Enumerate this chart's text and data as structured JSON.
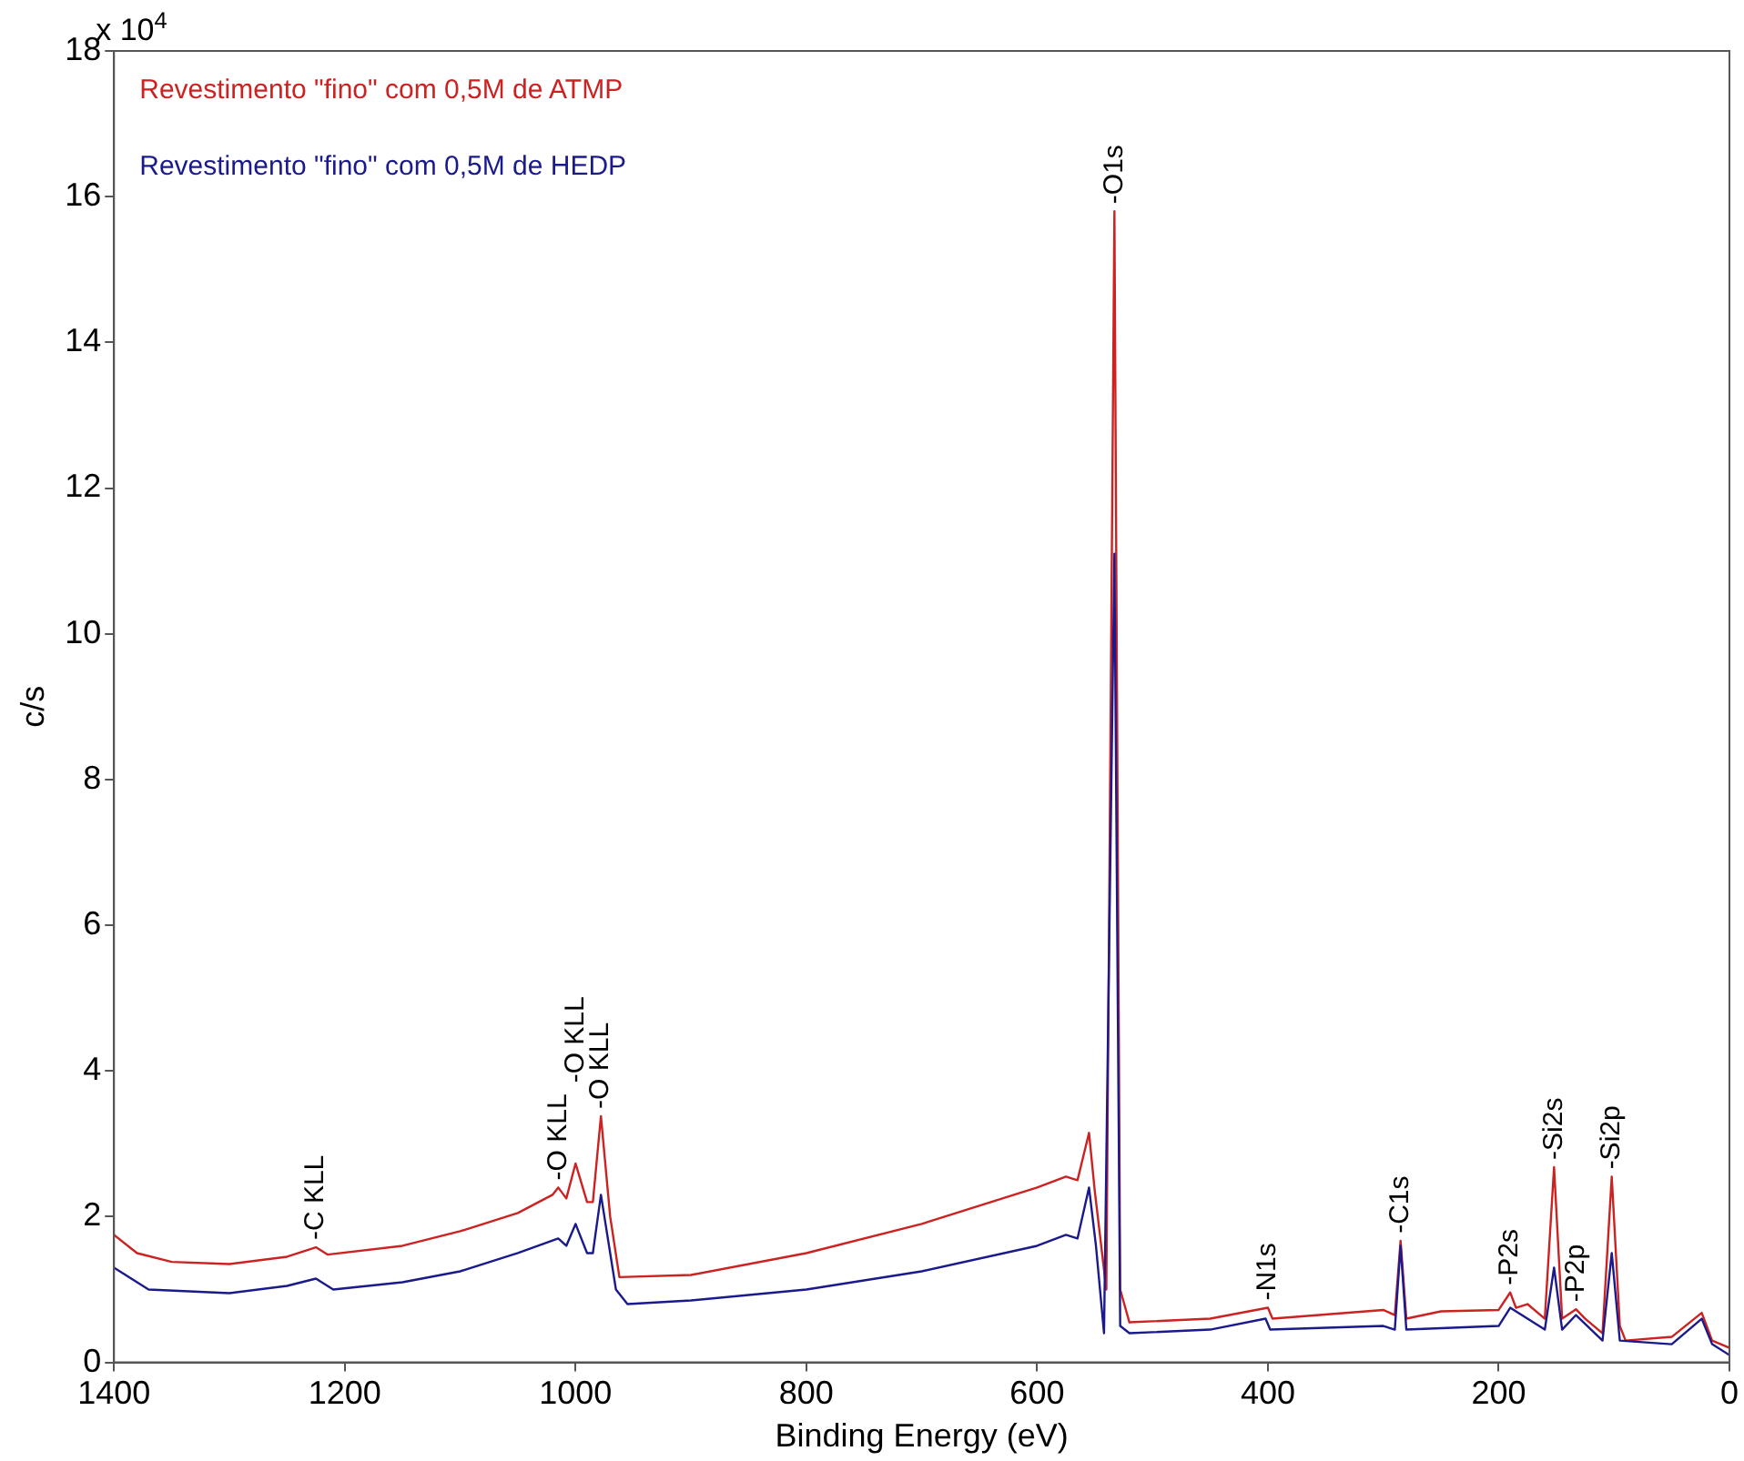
{
  "chart_data": {
    "type": "line",
    "xlabel": "Binding Energy (eV)",
    "ylabel": "c/s",
    "xlim": [
      1400,
      0
    ],
    "xticks": [
      1400,
      1200,
      1000,
      800,
      600,
      400,
      200,
      0
    ],
    "ylim": [
      0,
      18
    ],
    "yticks": [
      0,
      2,
      4,
      6,
      8,
      10,
      12,
      14,
      16,
      18
    ],
    "legend": "top left",
    "marker": "none",
    "line_style": "solid",
    "series": [
      {
        "name": "Revestimento \"fino\" com 0,5M de ATMP",
        "color": "#cc2222",
        "x": [
          1400,
          1380,
          1350,
          1300,
          1250,
          1225,
          1215,
          1150,
          1100,
          1050,
          1020,
          1015,
          1008,
          1000,
          990,
          985,
          978,
          970,
          962,
          900,
          800,
          700,
          600,
          575,
          565,
          555,
          550,
          540,
          533,
          528,
          520,
          450,
          400,
          396,
          300,
          290,
          285,
          280,
          250,
          200,
          190,
          185,
          175,
          160,
          152,
          145,
          133,
          125,
          110,
          102,
          95,
          90,
          50,
          24,
          15,
          0
        ],
        "values": [
          1.75,
          1.5,
          1.38,
          1.35,
          1.45,
          1.58,
          1.48,
          1.6,
          1.8,
          2.05,
          2.3,
          2.4,
          2.25,
          2.73,
          2.2,
          2.2,
          3.38,
          2.0,
          1.17,
          1.2,
          1.5,
          1.9,
          2.4,
          2.55,
          2.5,
          3.15,
          2.35,
          1.0,
          15.8,
          1.0,
          0.55,
          0.6,
          0.75,
          0.6,
          0.72,
          0.65,
          1.67,
          0.6,
          0.7,
          0.72,
          0.96,
          0.75,
          0.8,
          0.6,
          2.68,
          0.6,
          0.73,
          0.6,
          0.4,
          2.55,
          0.5,
          0.3,
          0.35,
          0.68,
          0.3,
          0.2
        ]
      },
      {
        "name": "Revestimento \"fino\" com 0,5M de HEDP",
        "color": "#1a1a8c",
        "x": [
          1400,
          1370,
          1300,
          1250,
          1225,
          1210,
          1150,
          1100,
          1050,
          1015,
          1008,
          1000,
          990,
          985,
          978,
          965,
          955,
          900,
          800,
          700,
          600,
          575,
          565,
          555,
          549,
          542,
          533,
          528,
          520,
          450,
          402,
          398,
          300,
          290,
          285,
          280,
          200,
          190,
          175,
          160,
          152,
          145,
          133,
          110,
          102,
          95,
          50,
          24,
          15,
          0
        ],
        "values": [
          1.3,
          1.0,
          0.95,
          1.05,
          1.15,
          1.0,
          1.1,
          1.25,
          1.5,
          1.7,
          1.6,
          1.9,
          1.5,
          1.5,
          2.3,
          1.0,
          0.8,
          0.85,
          1.0,
          1.25,
          1.6,
          1.75,
          1.7,
          2.4,
          1.6,
          0.4,
          11.1,
          0.5,
          0.4,
          0.45,
          0.6,
          0.45,
          0.5,
          0.45,
          1.6,
          0.45,
          0.5,
          0.75,
          0.6,
          0.45,
          1.3,
          0.45,
          0.65,
          0.3,
          1.5,
          0.3,
          0.25,
          0.6,
          0.25,
          0.1
        ]
      }
    ],
    "annotations": [
      "x 10$^{4}$",
      {
        "text": "-C KLL",
        "x": 1225,
        "y": 1.58
      },
      {
        "text": "-O KLL",
        "x": 1015,
        "y": 2.4
      },
      {
        "text": "-O KLL",
        "x": 1000,
        "y": 2.73
      },
      {
        "text": "-O KLL",
        "x": 978,
        "y": 3.38
      },
      {
        "text": "-O1s",
        "x": 533,
        "y": 15.8
      },
      {
        "text": "-N1s",
        "x": 400,
        "y": 0.75
      },
      {
        "text": "-C1s",
        "x": 285,
        "y": 1.67
      },
      {
        "text": "-P2s",
        "x": 190,
        "y": 0.96
      },
      {
        "text": "-Si2s",
        "x": 152,
        "y": 2.68
      },
      {
        "text": "-P2p",
        "x": 133,
        "y": 0.73
      },
      {
        "text": "-Si2p",
        "x": 102,
        "y": 2.55
      }
    ]
  }
}
